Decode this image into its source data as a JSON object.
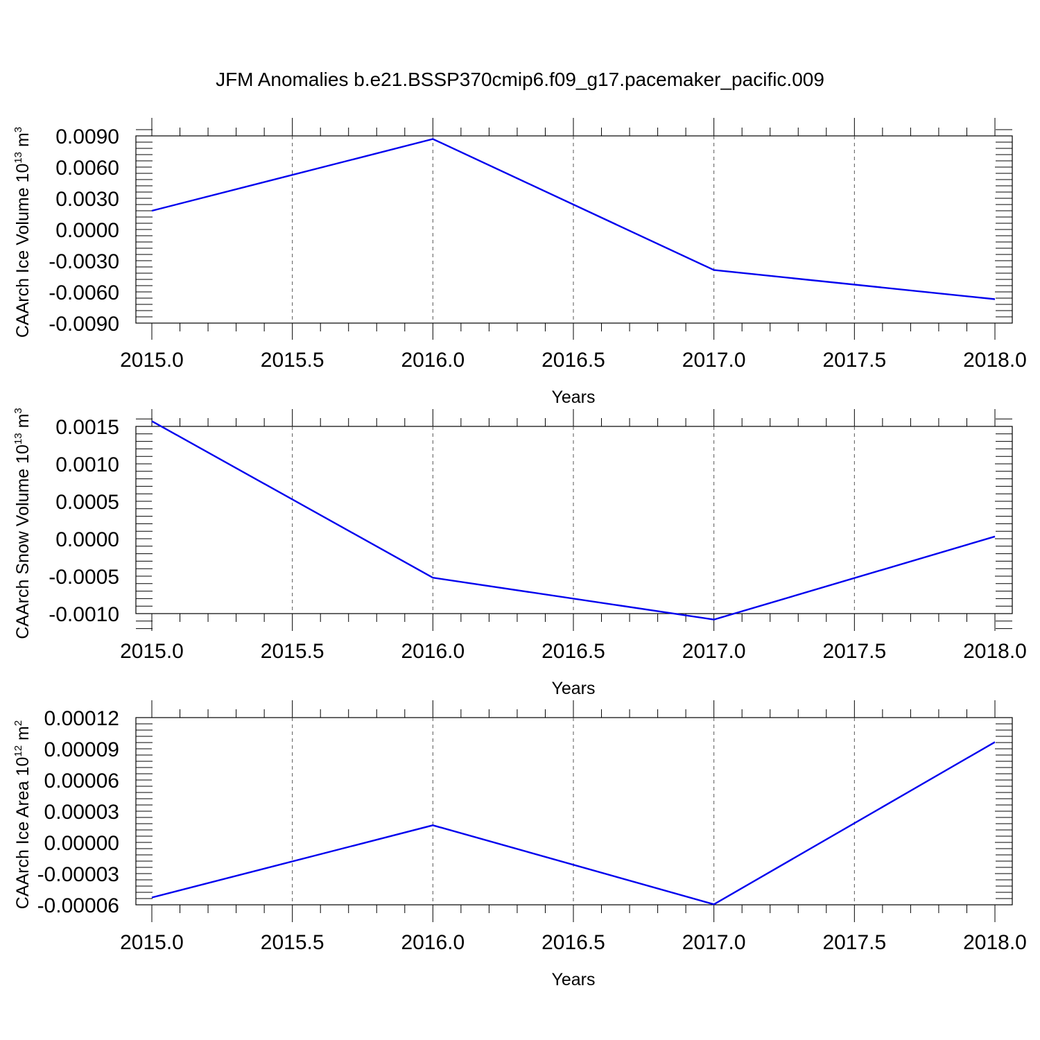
{
  "title": "JFM Anomalies b.e21.BSSP370cmip6.f09_g17.pacemaker_pacific.009",
  "colors": {
    "series": "#0000ee",
    "axis": "#000000",
    "grid": "#555555"
  },
  "chart_data": [
    {
      "type": "line",
      "xlabel": "Years",
      "ylabel_main": "CAArch Ice Volume 10",
      "ylabel_exp": "13",
      "ylabel_unit": " m",
      "ylabel_unit_exp": "3",
      "xlim": [
        2015.0,
        2018.0
      ],
      "ylim": [
        -0.009,
        0.0099
      ],
      "xticks": [
        "2015.0",
        "2015.5",
        "2016.0",
        "2016.5",
        "2017.0",
        "2017.5",
        "2018.0"
      ],
      "yticks": [
        "0.0090",
        "0.0060",
        "0.0030",
        "0.0000",
        "-0.0030",
        "-0.0060",
        "-0.0090"
      ],
      "x": [
        2015,
        2016,
        2017,
        2018
      ],
      "values": [
        0.0018,
        0.0087,
        -0.0039,
        -0.0067
      ],
      "grid": "vertical dashed"
    },
    {
      "type": "line",
      "xlabel": "Years",
      "ylabel_main": "CAArch Snow Volume 10",
      "ylabel_exp": "13",
      "ylabel_unit": " m",
      "ylabel_unit_exp": "3",
      "xlim": [
        2015.0,
        2018.0
      ],
      "ylim": [
        -0.0012,
        0.0016
      ],
      "xticks": [
        "2015.0",
        "2015.5",
        "2016.0",
        "2016.5",
        "2017.0",
        "2017.5",
        "2018.0"
      ],
      "yticks": [
        "0.0015",
        "0.0010",
        "0.0005",
        "0.0000",
        "-0.0005",
        "-0.0010"
      ],
      "x": [
        2015,
        2016,
        2017,
        2018
      ],
      "values": [
        0.00157,
        -0.00052,
        -0.00108,
        3e-05
      ],
      "grid": "vertical dashed"
    },
    {
      "type": "line",
      "xlabel": "Years",
      "ylabel_main": "CAArch Ice Area 10",
      "ylabel_exp": "12",
      "ylabel_unit": " m",
      "ylabel_unit_exp": "2",
      "xlim": [
        2015.0,
        2018.0
      ],
      "ylim": [
        -6e-05,
        0.00012
      ],
      "xticks": [
        "2015.0",
        "2015.5",
        "2016.0",
        "2016.5",
        "2017.0",
        "2017.5",
        "2018.0"
      ],
      "yticks": [
        "0.00012",
        "0.00009",
        "0.00006",
        "0.00003",
        "0.00000",
        "-0.00003",
        "-0.00006"
      ],
      "x": [
        2015,
        2016,
        2017,
        2018
      ],
      "values": [
        -5.3e-05,
        1.65e-05,
        -5.95e-05,
        9.65e-05
      ],
      "grid": "vertical dashed"
    }
  ]
}
